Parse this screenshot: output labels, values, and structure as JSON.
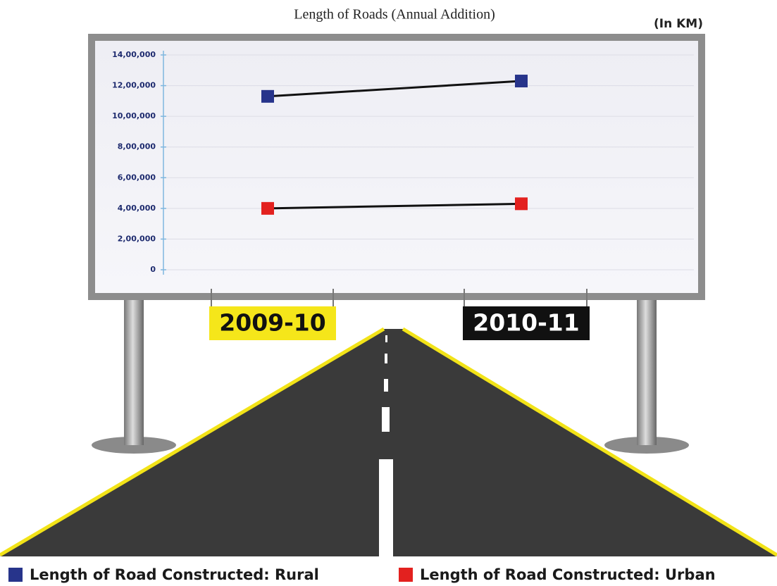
{
  "chart_data": {
    "type": "line",
    "title": "Length of Roads (Annual Addition)",
    "unit_label": "(In KM)",
    "categories": [
      "2009-10",
      "2010-11"
    ],
    "series": [
      {
        "name": "Length of Road Constructed: Rural",
        "color": "#27348b",
        "values": [
          1130000,
          1230000
        ]
      },
      {
        "name": "Length of Road Constructed: Urban",
        "color": "#e3211f",
        "values": [
          400000,
          430000
        ]
      }
    ],
    "ylim": [
      0,
      1400000
    ],
    "yticks": [
      0,
      {
        "value": 200000,
        "label": "2,00,000"
      },
      {
        "value": 400000,
        "label": "4,00,000"
      },
      {
        "value": 600000,
        "label": "6,00,000"
      },
      {
        "value": 800000,
        "label": "8,00,000"
      },
      {
        "value": 1000000,
        "label": "10,00,000"
      },
      {
        "value": 1200000,
        "label": "12,00,000"
      },
      {
        "value": 1400000,
        "label": "14,00,000"
      }
    ],
    "grid": true
  }
}
